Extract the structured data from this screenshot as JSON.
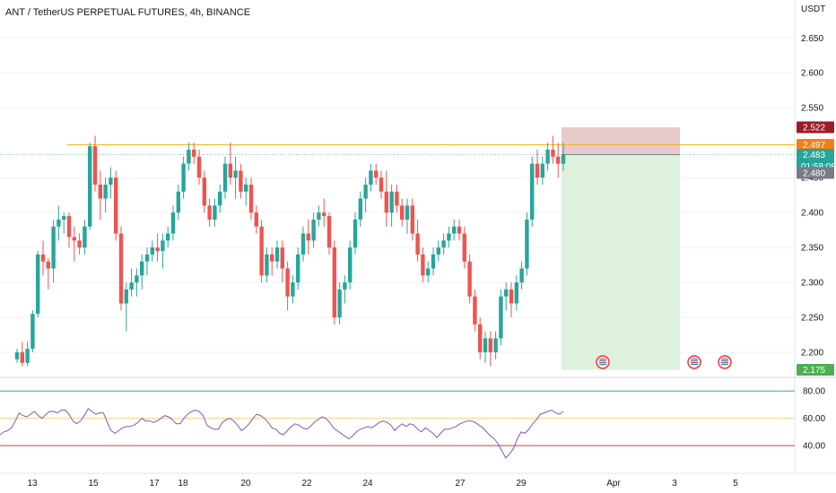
{
  "header": {
    "title": "ANT / TetherUS PERPETUAL FUTURES, 4h, BINANCE",
    "currency": "USDT"
  },
  "colors": {
    "up": "#26a69a",
    "down": "#ef5350",
    "resistance": "#f0b429",
    "stop_zone": "#d7a5a9",
    "target_zone": "#d9f0d9",
    "rsi_line": "#7e57c2",
    "rsi_upper": "#4caf50",
    "rsi_mid": "#f5d76e",
    "rsi_lower": "#e53935"
  },
  "chart_data": {
    "type": "candlestick",
    "y_ticks": [
      "2.650",
      "2.600",
      "2.550",
      "2.450",
      "2.400",
      "2.350",
      "2.300",
      "2.250",
      "2.200"
    ],
    "ylim": [
      2.168,
      2.676
    ],
    "x_ticks": [
      "13",
      "15",
      "17",
      "18",
      "20",
      "22",
      "24",
      "27",
      "29",
      "Apr",
      "3",
      "5"
    ],
    "price_tags": [
      {
        "label": "2.522",
        "value": 2.522,
        "color": "#9b1c25"
      },
      {
        "label": "2.497",
        "value": 2.497,
        "color": "#f57f17"
      },
      {
        "label": "2.483",
        "value": 2.483,
        "color": "#26a69a",
        "countdown": "01:58:08"
      },
      {
        "label": "2.480",
        "value": 2.48,
        "color": "#787b86"
      },
      {
        "label": "2.175",
        "value": 2.175,
        "color": "#4caf50"
      }
    ],
    "resistance_level": 2.497,
    "position": {
      "entry": 2.483,
      "stop": 2.522,
      "target": 2.175
    },
    "candles": [
      [
        2.19,
        2.205,
        2.185,
        2.2
      ],
      [
        2.2,
        2.215,
        2.18,
        2.185
      ],
      [
        2.185,
        2.215,
        2.18,
        2.205
      ],
      [
        2.205,
        2.26,
        2.2,
        2.255
      ],
      [
        2.255,
        2.345,
        2.25,
        2.34
      ],
      [
        2.34,
        2.36,
        2.31,
        2.33
      ],
      [
        2.33,
        2.335,
        2.29,
        2.32
      ],
      [
        2.32,
        2.39,
        2.3,
        2.38
      ],
      [
        2.38,
        2.41,
        2.36,
        2.39
      ],
      [
        2.39,
        2.4,
        2.37,
        2.395
      ],
      [
        2.395,
        2.4,
        2.35,
        2.365
      ],
      [
        2.365,
        2.38,
        2.33,
        2.36
      ],
      [
        2.36,
        2.37,
        2.34,
        2.35
      ],
      [
        2.35,
        2.39,
        2.34,
        2.38
      ],
      [
        2.38,
        2.5,
        2.375,
        2.495
      ],
      [
        2.495,
        2.51,
        2.43,
        2.44
      ],
      [
        2.44,
        2.46,
        2.39,
        2.42
      ],
      [
        2.42,
        2.45,
        2.4,
        2.44
      ],
      [
        2.44,
        2.465,
        2.42,
        2.45
      ],
      [
        2.45,
        2.46,
        2.36,
        2.37
      ],
      [
        2.37,
        2.38,
        2.26,
        2.27
      ],
      [
        2.27,
        2.3,
        2.23,
        2.29
      ],
      [
        2.29,
        2.32,
        2.28,
        2.3
      ],
      [
        2.3,
        2.32,
        2.28,
        2.31
      ],
      [
        2.31,
        2.34,
        2.29,
        2.33
      ],
      [
        2.33,
        2.35,
        2.31,
        2.34
      ],
      [
        2.34,
        2.36,
        2.33,
        2.35
      ],
      [
        2.35,
        2.37,
        2.33,
        2.345
      ],
      [
        2.345,
        2.37,
        2.32,
        2.36
      ],
      [
        2.36,
        2.38,
        2.35,
        2.37
      ],
      [
        2.37,
        2.41,
        2.36,
        2.4
      ],
      [
        2.4,
        2.44,
        2.39,
        2.43
      ],
      [
        2.43,
        2.48,
        2.42,
        2.47
      ],
      [
        2.47,
        2.5,
        2.46,
        2.49
      ],
      [
        2.49,
        2.5,
        2.47,
        2.48
      ],
      [
        2.48,
        2.49,
        2.44,
        2.45
      ],
      [
        2.45,
        2.46,
        2.4,
        2.41
      ],
      [
        2.41,
        2.42,
        2.38,
        2.39
      ],
      [
        2.39,
        2.42,
        2.38,
        2.41
      ],
      [
        2.41,
        2.44,
        2.4,
        2.43
      ],
      [
        2.43,
        2.48,
        2.42,
        2.47
      ],
      [
        2.47,
        2.5,
        2.44,
        2.45
      ],
      [
        2.45,
        2.48,
        2.42,
        2.46
      ],
      [
        2.46,
        2.47,
        2.42,
        2.43
      ],
      [
        2.43,
        2.45,
        2.41,
        2.44
      ],
      [
        2.44,
        2.45,
        2.39,
        2.4
      ],
      [
        2.4,
        2.41,
        2.37,
        2.38
      ],
      [
        2.38,
        2.39,
        2.3,
        2.31
      ],
      [
        2.31,
        2.35,
        2.3,
        2.34
      ],
      [
        2.34,
        2.35,
        2.31,
        2.33
      ],
      [
        2.33,
        2.36,
        2.32,
        2.35
      ],
      [
        2.35,
        2.36,
        2.3,
        2.32
      ],
      [
        2.32,
        2.33,
        2.26,
        2.28
      ],
      [
        2.28,
        2.31,
        2.27,
        2.3
      ],
      [
        2.3,
        2.35,
        2.29,
        2.34
      ],
      [
        2.34,
        2.38,
        2.33,
        2.37
      ],
      [
        2.37,
        2.39,
        2.34,
        2.36
      ],
      [
        2.36,
        2.4,
        2.35,
        2.39
      ],
      [
        2.39,
        2.41,
        2.38,
        2.4
      ],
      [
        2.4,
        2.42,
        2.38,
        2.395
      ],
      [
        2.395,
        2.4,
        2.34,
        2.35
      ],
      [
        2.35,
        2.36,
        2.24,
        2.25
      ],
      [
        2.25,
        2.3,
        2.24,
        2.29
      ],
      [
        2.29,
        2.31,
        2.27,
        2.3
      ],
      [
        2.3,
        2.36,
        2.29,
        2.35
      ],
      [
        2.35,
        2.4,
        2.34,
        2.39
      ],
      [
        2.39,
        2.43,
        2.38,
        2.42
      ],
      [
        2.42,
        2.45,
        2.4,
        2.44
      ],
      [
        2.44,
        2.47,
        2.43,
        2.46
      ],
      [
        2.46,
        2.47,
        2.44,
        2.45
      ],
      [
        2.45,
        2.46,
        2.42,
        2.43
      ],
      [
        2.43,
        2.46,
        2.38,
        2.4
      ],
      [
        2.4,
        2.44,
        2.38,
        2.43
      ],
      [
        2.43,
        2.44,
        2.4,
        2.41
      ],
      [
        2.41,
        2.42,
        2.38,
        2.39
      ],
      [
        2.39,
        2.42,
        2.37,
        2.41
      ],
      [
        2.41,
        2.42,
        2.36,
        2.37
      ],
      [
        2.37,
        2.39,
        2.33,
        2.34
      ],
      [
        2.34,
        2.35,
        2.3,
        2.31
      ],
      [
        2.31,
        2.33,
        2.3,
        2.32
      ],
      [
        2.32,
        2.35,
        2.31,
        2.34
      ],
      [
        2.34,
        2.36,
        2.33,
        2.35
      ],
      [
        2.35,
        2.37,
        2.34,
        2.36
      ],
      [
        2.36,
        2.38,
        2.35,
        2.37
      ],
      [
        2.37,
        2.39,
        2.36,
        2.38
      ],
      [
        2.38,
        2.39,
        2.36,
        2.37
      ],
      [
        2.37,
        2.38,
        2.32,
        2.33
      ],
      [
        2.33,
        2.34,
        2.27,
        2.28
      ],
      [
        2.28,
        2.29,
        2.23,
        2.24
      ],
      [
        2.24,
        2.25,
        2.19,
        2.2
      ],
      [
        2.2,
        2.23,
        2.185,
        2.22
      ],
      [
        2.22,
        2.23,
        2.18,
        2.2
      ],
      [
        2.2,
        2.23,
        2.19,
        2.22
      ],
      [
        2.22,
        2.29,
        2.21,
        2.28
      ],
      [
        2.28,
        2.3,
        2.26,
        2.29
      ],
      [
        2.29,
        2.3,
        2.25,
        2.27
      ],
      [
        2.27,
        2.31,
        2.26,
        2.3
      ],
      [
        2.3,
        2.33,
        2.29,
        2.32
      ],
      [
        2.32,
        2.4,
        2.31,
        2.39
      ],
      [
        2.39,
        2.48,
        2.38,
        2.47
      ],
      [
        2.47,
        2.49,
        2.44,
        2.45
      ],
      [
        2.45,
        2.48,
        2.44,
        2.47
      ],
      [
        2.47,
        2.5,
        2.46,
        2.49
      ],
      [
        2.49,
        2.51,
        2.47,
        2.48
      ],
      [
        2.48,
        2.5,
        2.45,
        2.47
      ],
      [
        2.47,
        2.5,
        2.46,
        2.483
      ]
    ],
    "rsi": {
      "levels": [
        "80.00",
        "60.00",
        "40.00"
      ],
      "level_values": [
        80,
        60,
        40
      ],
      "ylim": [
        25,
        88
      ],
      "values": [
        48,
        50,
        51,
        53,
        58,
        64,
        62,
        61,
        63,
        65,
        62,
        60,
        63,
        65,
        65,
        64,
        66,
        66,
        63,
        58,
        56,
        58,
        62,
        67,
        65,
        63,
        64,
        64,
        57,
        51,
        49,
        51,
        53,
        54,
        54,
        55,
        57,
        60,
        58,
        58,
        57,
        58,
        60,
        62,
        61,
        59,
        56,
        56,
        60,
        63,
        65,
        66,
        65,
        62,
        55,
        53,
        52,
        52,
        57,
        59,
        60,
        58,
        55,
        51,
        53,
        56,
        60,
        63,
        62,
        60,
        57,
        53,
        52,
        49,
        48,
        51,
        54,
        56,
        55,
        53,
        52,
        54,
        57,
        59,
        61,
        60,
        57,
        53,
        51,
        49,
        47,
        45,
        47,
        50,
        52,
        53,
        54,
        53,
        55,
        57,
        58,
        57,
        55,
        51,
        54,
        56,
        54,
        56,
        55,
        52,
        50,
        53,
        51,
        49,
        46,
        49,
        52,
        52,
        53,
        54,
        56,
        57,
        58,
        58,
        57,
        55,
        53,
        50,
        47,
        45,
        41,
        36,
        31,
        34,
        38,
        45,
        50,
        49,
        52,
        56,
        59,
        63,
        64,
        65,
        66,
        64,
        63,
        65
      ]
    }
  }
}
